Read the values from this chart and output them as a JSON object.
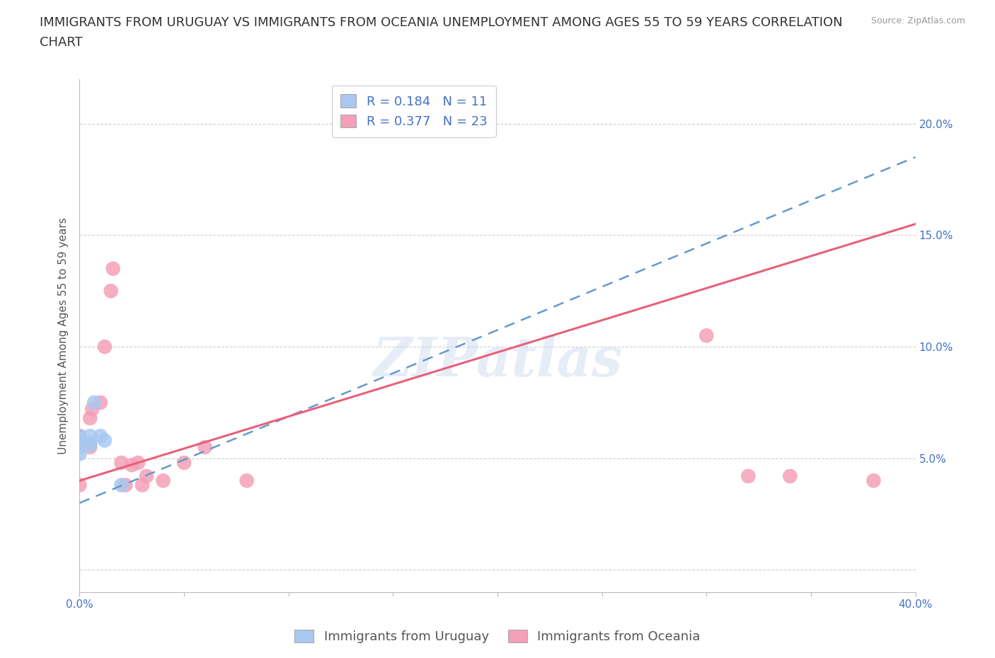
{
  "title_line1": "IMMIGRANTS FROM URUGUAY VS IMMIGRANTS FROM OCEANIA UNEMPLOYMENT AMONG AGES 55 TO 59 YEARS CORRELATION",
  "title_line2": "CHART",
  "source": "Source: ZipAtlas.com",
  "ylabel": "Unemployment Among Ages 55 to 59 years",
  "xlim": [
    0.0,
    0.4
  ],
  "ylim": [
    -0.01,
    0.22
  ],
  "xticks": [
    0.0,
    0.05,
    0.1,
    0.15,
    0.2,
    0.25,
    0.3,
    0.35,
    0.4
  ],
  "yticks": [
    0.0,
    0.05,
    0.1,
    0.15,
    0.2
  ],
  "background_color": "#ffffff",
  "grid_color": "#d0d0d0",
  "uruguay_color": "#a8c8f0",
  "oceania_color": "#f4a0b8",
  "trend_uruguay_color": "#6699cc",
  "trend_oceania_color": "#e8607a",
  "uruguay_R": 0.184,
  "uruguay_N": 11,
  "oceania_R": 0.377,
  "oceania_N": 23,
  "uruguay_x": [
    0.0,
    0.0,
    0.0,
    0.0,
    0.005,
    0.005,
    0.005,
    0.007,
    0.01,
    0.012,
    0.02
  ],
  "uruguay_y": [
    0.055,
    0.06,
    0.058,
    0.052,
    0.06,
    0.057,
    0.056,
    0.075,
    0.06,
    0.058,
    0.038
  ],
  "oceania_x": [
    0.0,
    0.0,
    0.005,
    0.005,
    0.006,
    0.01,
    0.012,
    0.015,
    0.016,
    0.02,
    0.022,
    0.025,
    0.028,
    0.03,
    0.032,
    0.04,
    0.05,
    0.06,
    0.08,
    0.3,
    0.32,
    0.34,
    0.38
  ],
  "oceania_y": [
    0.06,
    0.038,
    0.068,
    0.055,
    0.072,
    0.075,
    0.1,
    0.125,
    0.135,
    0.048,
    0.038,
    0.047,
    0.048,
    0.038,
    0.042,
    0.04,
    0.048,
    0.055,
    0.04,
    0.105,
    0.042,
    0.042,
    0.04
  ],
  "watermark": "ZIPatlas",
  "title_fontsize": 13,
  "axis_fontsize": 11,
  "tick_fontsize": 11,
  "legend_fontsize": 13
}
